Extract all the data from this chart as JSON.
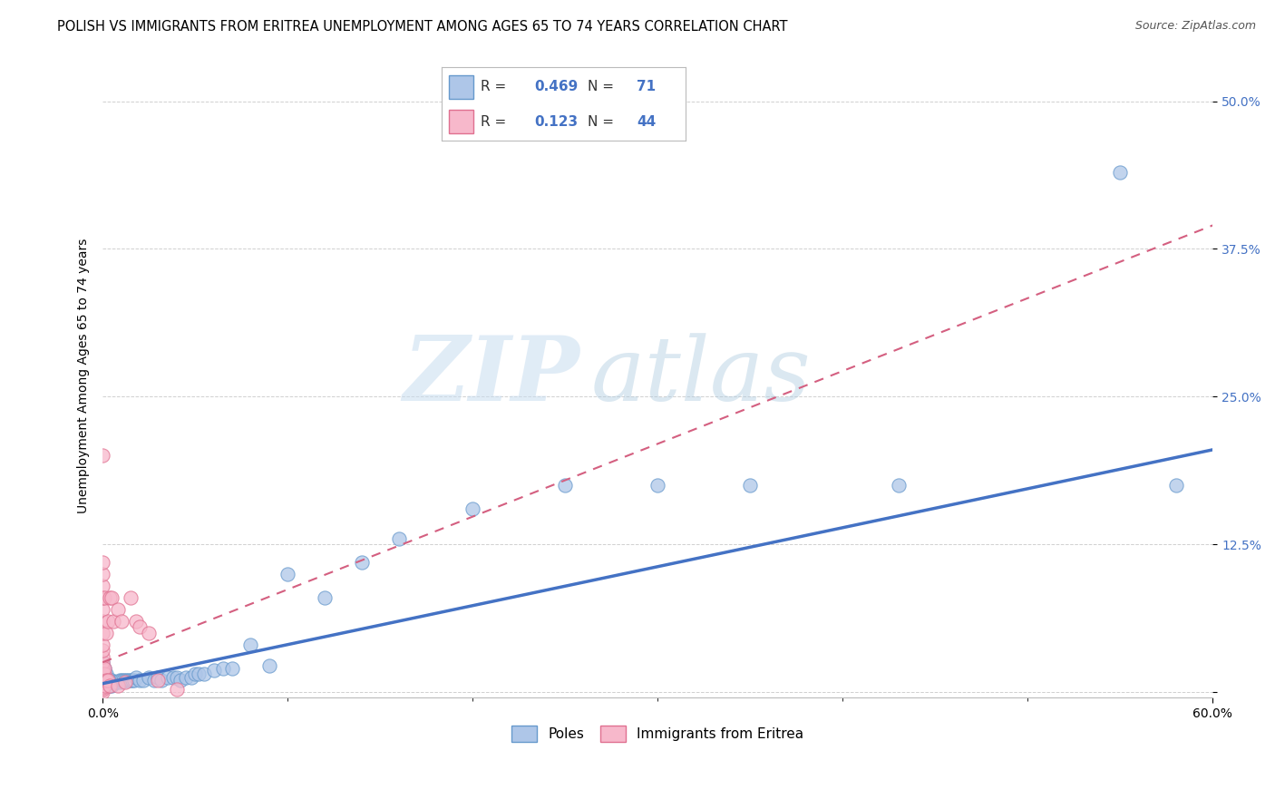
{
  "title": "POLISH VS IMMIGRANTS FROM ERITREA UNEMPLOYMENT AMONG AGES 65 TO 74 YEARS CORRELATION CHART",
  "source": "Source: ZipAtlas.com",
  "ylabel": "Unemployment Among Ages 65 to 74 years",
  "xlim": [
    0.0,
    0.6
  ],
  "ylim": [
    -0.005,
    0.54
  ],
  "yticks": [
    0.0,
    0.125,
    0.25,
    0.375,
    0.5
  ],
  "ytick_labels": [
    "",
    "12.5%",
    "25.0%",
    "37.5%",
    "50.0%"
  ],
  "xtick_labels": [
    "0.0%",
    "60.0%"
  ],
  "poles_R": 0.469,
  "poles_N": 71,
  "eritrea_R": 0.123,
  "eritrea_N": 44,
  "poles_color": "#aec6e8",
  "poles_edge_color": "#6699cc",
  "poles_line_color": "#4472c4",
  "eritrea_color": "#f7b8cb",
  "eritrea_edge_color": "#e07090",
  "eritrea_line_color": "#d45f80",
  "poles_x": [
    0.0,
    0.0,
    0.0,
    0.0,
    0.0,
    0.0,
    0.0,
    0.0,
    0.001,
    0.001,
    0.001,
    0.001,
    0.001,
    0.002,
    0.002,
    0.002,
    0.002,
    0.003,
    0.003,
    0.003,
    0.004,
    0.004,
    0.004,
    0.005,
    0.005,
    0.005,
    0.006,
    0.007,
    0.008,
    0.009,
    0.01,
    0.01,
    0.011,
    0.012,
    0.013,
    0.014,
    0.015,
    0.016,
    0.017,
    0.018,
    0.02,
    0.022,
    0.025,
    0.028,
    0.03,
    0.032,
    0.035,
    0.038,
    0.04,
    0.042,
    0.045,
    0.048,
    0.05,
    0.052,
    0.055,
    0.06,
    0.065,
    0.07,
    0.08,
    0.09,
    0.1,
    0.12,
    0.14,
    0.16,
    0.2,
    0.25,
    0.3,
    0.35,
    0.43,
    0.55,
    0.58
  ],
  "poles_y": [
    0.005,
    0.008,
    0.01,
    0.012,
    0.015,
    0.018,
    0.02,
    0.025,
    0.005,
    0.008,
    0.01,
    0.015,
    0.02,
    0.005,
    0.008,
    0.01,
    0.015,
    0.005,
    0.008,
    0.01,
    0.005,
    0.008,
    0.01,
    0.005,
    0.008,
    0.01,
    0.008,
    0.008,
    0.008,
    0.01,
    0.008,
    0.01,
    0.01,
    0.01,
    0.01,
    0.01,
    0.01,
    0.01,
    0.01,
    0.012,
    0.01,
    0.01,
    0.012,
    0.01,
    0.012,
    0.01,
    0.012,
    0.012,
    0.012,
    0.01,
    0.012,
    0.012,
    0.015,
    0.015,
    0.015,
    0.018,
    0.02,
    0.02,
    0.04,
    0.022,
    0.1,
    0.08,
    0.11,
    0.13,
    0.155,
    0.175,
    0.175,
    0.175,
    0.175,
    0.44,
    0.175
  ],
  "eritrea_x": [
    0.0,
    0.0,
    0.0,
    0.0,
    0.0,
    0.0,
    0.0,
    0.0,
    0.0,
    0.0,
    0.0,
    0.0,
    0.0,
    0.0,
    0.0,
    0.0,
    0.0,
    0.0,
    0.0,
    0.0,
    0.0,
    0.0,
    0.001,
    0.001,
    0.001,
    0.001,
    0.002,
    0.002,
    0.003,
    0.003,
    0.004,
    0.004,
    0.005,
    0.006,
    0.008,
    0.008,
    0.01,
    0.012,
    0.015,
    0.018,
    0.02,
    0.025,
    0.03,
    0.04
  ],
  "eritrea_y": [
    0.0,
    0.002,
    0.004,
    0.006,
    0.008,
    0.01,
    0.012,
    0.015,
    0.018,
    0.02,
    0.025,
    0.03,
    0.035,
    0.04,
    0.05,
    0.06,
    0.07,
    0.08,
    0.09,
    0.1,
    0.11,
    0.2,
    0.005,
    0.015,
    0.02,
    0.08,
    0.01,
    0.05,
    0.01,
    0.06,
    0.005,
    0.08,
    0.08,
    0.06,
    0.005,
    0.07,
    0.06,
    0.008,
    0.08,
    0.06,
    0.055,
    0.05,
    0.01,
    0.002
  ],
  "poles_line_x0": 0.0,
  "poles_line_y0": 0.007,
  "poles_line_x1": 0.6,
  "poles_line_y1": 0.205,
  "eritrea_line_x0": 0.0,
  "eritrea_line_y0": 0.025,
  "eritrea_line_x1": 0.6,
  "eritrea_line_y1": 0.395,
  "watermark_zip": "ZIP",
  "watermark_atlas": "atlas",
  "background_color": "#ffffff",
  "grid_color": "#d0d0d0",
  "title_fontsize": 10.5,
  "source_fontsize": 9,
  "axis_label_fontsize": 10,
  "tick_fontsize": 10,
  "legend_fontsize": 11
}
